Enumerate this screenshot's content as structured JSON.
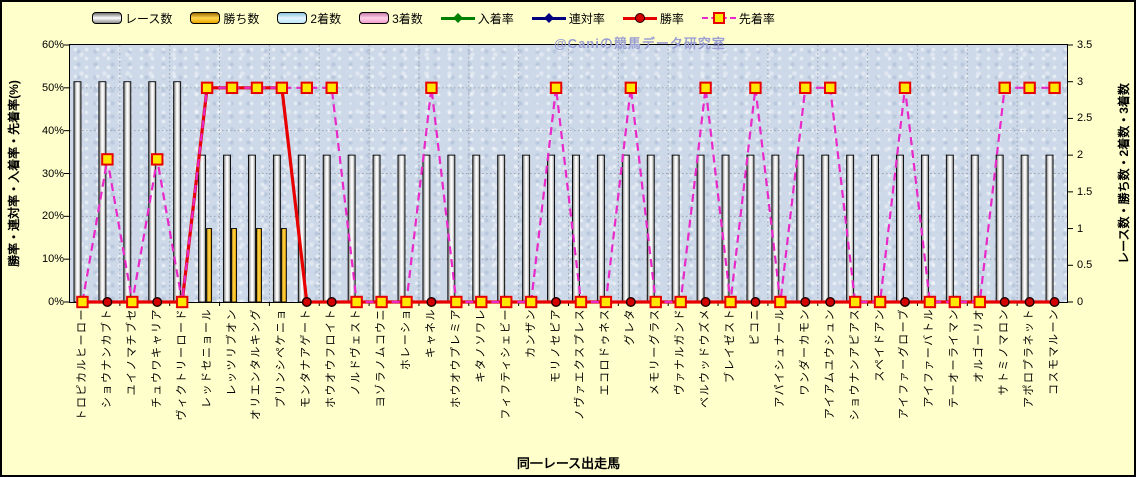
{
  "watermark": "@Caniの競馬データ研究室",
  "axes": {
    "left_title": "勝率・連対率・入着率・先着率(%)",
    "right_title": "レース数・勝ち数・2着数・3着数",
    "x_title": "同一レース出走馬",
    "left_ticks": [
      "0%",
      "10%",
      "20%",
      "30%",
      "40%",
      "50%",
      "60%"
    ],
    "right_ticks": [
      "0",
      "0.5",
      "1",
      "1.5",
      "2",
      "2.5",
      "3",
      "3.5"
    ]
  },
  "legend": [
    {
      "label": "レース数",
      "type": "bar",
      "fill": [
        "#6e6e6e",
        "#ffffff",
        "#8e8e8e"
      ]
    },
    {
      "label": "勝ち数",
      "type": "bar",
      "fill": [
        "#9c6a00",
        "#ffd44d",
        "#eda800"
      ]
    },
    {
      "label": "2着数",
      "type": "bar",
      "fill": [
        "#8fc3da",
        "#e2f5ff",
        "#bfe6f5"
      ]
    },
    {
      "label": "3着数",
      "type": "bar",
      "fill": [
        "#c77aa8",
        "#ffd0e8",
        "#f0a0ce"
      ]
    },
    {
      "label": "入着率",
      "type": "line",
      "color": "#008000",
      "marker": "diamond",
      "dashed": false
    },
    {
      "label": "連対率",
      "type": "line",
      "color": "#000080",
      "marker": "diamond",
      "dashed": false
    },
    {
      "label": "勝率",
      "type": "line",
      "color": "#e80000",
      "marker": "circle",
      "dashed": false
    },
    {
      "label": "先着率",
      "type": "line",
      "color": "#e828c8",
      "marker": "square",
      "dashed": true
    }
  ],
  "colors": {
    "canvas_bg": "#FFFFCC",
    "plot_bg": "#CDD9E9",
    "grid": "#9aa2ae",
    "race_bar_edge": "#000000",
    "win_bar": "#f2a800",
    "win_rate_line": "#e80000",
    "lead_rate_line": "#e828c8",
    "marker_square_fill": "#ffe800",
    "marker_square_edge": "#e80000",
    "watermark": "#9a9ed2"
  },
  "chart_data": {
    "type": "combo",
    "title": "",
    "xlabel": "同一レース出走馬",
    "ylabel_left": "勝率・連対率・入着率・先着率(%)",
    "ylabel_right": "レース数・勝ち数・2着数・3着数",
    "left_range": [
      0,
      60
    ],
    "right_range": [
      0,
      3.5
    ],
    "grid": true,
    "legend_position": "top",
    "categories": [
      "トロピカルヒーロー",
      "ショウナンカブト",
      "ユイノマチブセ",
      "チュウワキャリア",
      "ヴィクトリーロード",
      "レッドセニョール",
      "レッツリブオン",
      "オリエンタルキング",
      "プリンシペケニョ",
      "モンタナアゲート",
      "ホウオウフロイト",
      "ノルドヴェスト",
      "ヨゾラノムコウニ",
      "ホレーショ",
      "キャネル",
      "ホウオウプレミア",
      "キタノソワレ",
      "フィフティシェビー",
      "カンザン",
      "モリノセピア",
      "ノヴァエクスプレス",
      "エコロドゥネス",
      "グレタ",
      "メモリーグラス",
      "ヴァナルガンド",
      "ベルウッドウズメ",
      "ブレイゼスト",
      "ピコニ",
      "アパイシュナール",
      "ワンダーカモン",
      "アイアムユウシュン",
      "ショウナンアピアス",
      "スペイドアン",
      "アイファーグローブ",
      "アイファーバトル",
      "テーオーライマン",
      "オルゴーリオ",
      "サトミノマロン",
      "アポロプラネット",
      "コスモマルーン"
    ],
    "series": [
      {
        "name": "レース数",
        "kind": "bar",
        "axis": "right",
        "values": [
          3,
          3,
          3,
          3,
          3,
          2,
          2,
          2,
          2,
          2,
          2,
          2,
          2,
          2,
          2,
          2,
          2,
          2,
          2,
          2,
          2,
          2,
          2,
          2,
          2,
          2,
          2,
          2,
          2,
          2,
          2,
          2,
          2,
          2,
          2,
          2,
          2,
          2,
          2,
          2
        ]
      },
      {
        "name": "勝ち数",
        "kind": "bar",
        "axis": "right",
        "values": [
          0,
          0,
          0,
          0,
          0,
          1,
          1,
          1,
          1,
          0,
          0,
          0,
          0,
          0,
          0,
          0,
          0,
          0,
          0,
          0,
          0,
          0,
          0,
          0,
          0,
          0,
          0,
          0,
          0,
          0,
          0,
          0,
          0,
          0,
          0,
          0,
          0,
          0,
          0,
          0
        ]
      },
      {
        "name": "2着数",
        "kind": "bar",
        "axis": "right",
        "values": [
          0,
          0,
          0,
          0,
          0,
          0,
          0,
          0,
          0,
          0,
          0,
          0,
          0,
          0,
          0,
          0,
          0,
          0,
          0,
          0,
          0,
          0,
          0,
          0,
          0,
          0,
          0,
          0,
          0,
          0,
          0,
          0,
          0,
          0,
          0,
          0,
          0,
          0,
          0,
          0
        ]
      },
      {
        "name": "3着数",
        "kind": "bar",
        "axis": "right",
        "values": [
          0,
          0,
          0,
          0,
          0,
          0,
          0,
          0,
          0,
          0,
          0,
          0,
          0,
          0,
          0,
          0,
          0,
          0,
          0,
          0,
          0,
          0,
          0,
          0,
          0,
          0,
          0,
          0,
          0,
          0,
          0,
          0,
          0,
          0,
          0,
          0,
          0,
          0,
          0,
          0
        ]
      },
      {
        "name": "入着率",
        "kind": "line",
        "axis": "left",
        "marker": "diamond",
        "values": [
          0,
          0,
          0,
          0,
          0,
          50,
          50,
          50,
          50,
          0,
          0,
          0,
          0,
          0,
          0,
          0,
          0,
          0,
          0,
          0,
          0,
          0,
          0,
          0,
          0,
          0,
          0,
          0,
          0,
          0,
          0,
          0,
          0,
          0,
          0,
          0,
          0,
          0,
          0,
          0
        ]
      },
      {
        "name": "連対率",
        "kind": "line",
        "axis": "left",
        "marker": "diamond",
        "values": [
          0,
          0,
          0,
          0,
          0,
          50,
          50,
          50,
          50,
          0,
          0,
          0,
          0,
          0,
          0,
          0,
          0,
          0,
          0,
          0,
          0,
          0,
          0,
          0,
          0,
          0,
          0,
          0,
          0,
          0,
          0,
          0,
          0,
          0,
          0,
          0,
          0,
          0,
          0,
          0
        ]
      },
      {
        "name": "勝率",
        "kind": "line",
        "axis": "left",
        "marker": "circle",
        "values": [
          0,
          0,
          0,
          0,
          0,
          50,
          50,
          50,
          50,
          0,
          0,
          0,
          0,
          0,
          0,
          0,
          0,
          0,
          0,
          0,
          0,
          0,
          0,
          0,
          0,
          0,
          0,
          0,
          0,
          0,
          0,
          0,
          0,
          0,
          0,
          0,
          0,
          0,
          0,
          0
        ]
      },
      {
        "name": "先着率",
        "kind": "line",
        "axis": "left",
        "marker": "square",
        "dashed": true,
        "values": [
          0,
          33.3,
          0,
          33.3,
          0,
          50,
          50,
          50,
          50,
          50,
          50,
          0,
          0,
          0,
          50,
          0,
          0,
          0,
          0,
          50,
          0,
          0,
          50,
          0,
          0,
          50,
          0,
          50,
          0,
          50,
          50,
          0,
          0,
          50,
          0,
          0,
          0,
          50,
          50,
          50
        ]
      }
    ]
  }
}
